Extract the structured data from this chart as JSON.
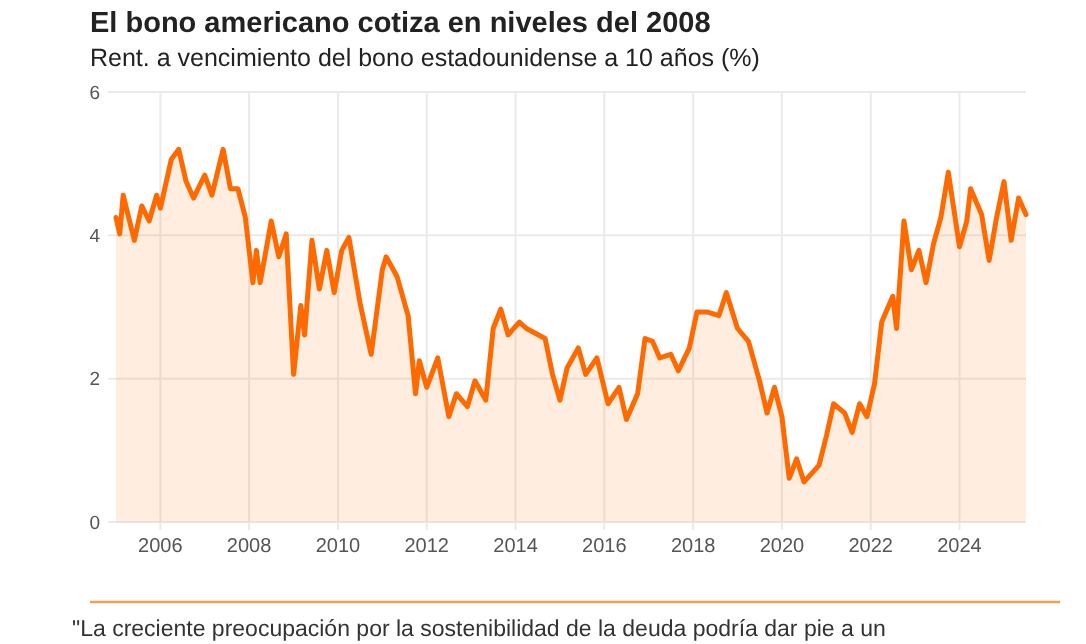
{
  "chart_data": {
    "type": "area",
    "title": "El bono americano cotiza en niveles del 2008",
    "subtitle": "Rent. a vencimiento del bono estadounidense a 10 años (%)",
    "series": [
      {
        "color": "#ff6a00",
        "x": [
          "2005-01",
          "2005-02",
          "2005-03",
          "2005-06",
          "2005-08",
          "2005-10",
          "2005-12",
          "2006-01",
          "2006-04",
          "2006-06",
          "2006-08",
          "2006-10",
          "2007-01",
          "2007-03",
          "2007-06",
          "2007-08",
          "2007-10",
          "2007-12",
          "2008-02",
          "2008-03",
          "2008-04",
          "2008-07",
          "2008-09",
          "2008-11",
          "2009-01",
          "2009-03",
          "2009-04",
          "2009-06",
          "2009-08",
          "2009-10",
          "2009-12",
          "2010-02",
          "2010-04",
          "2010-07",
          "2010-10",
          "2011-01",
          "2011-02",
          "2011-05",
          "2011-08",
          "2011-10",
          "2011-11",
          "2012-01",
          "2012-04",
          "2012-07",
          "2012-09",
          "2012-12",
          "2013-02",
          "2013-05",
          "2013-07",
          "2013-09",
          "2013-11",
          "2014-02",
          "2014-04",
          "2014-09",
          "2014-11",
          "2015-01",
          "2015-03",
          "2015-06",
          "2015-08",
          "2015-11",
          "2016-02",
          "2016-05",
          "2016-07",
          "2016-10",
          "2016-12",
          "2017-02",
          "2017-04",
          "2017-07",
          "2017-09",
          "2017-12",
          "2018-02",
          "2018-05",
          "2018-08",
          "2018-10",
          "2019-01",
          "2019-04",
          "2019-07",
          "2019-09",
          "2019-11",
          "2020-01",
          "2020-03",
          "2020-05",
          "2020-07",
          "2020-11",
          "2021-01",
          "2021-03",
          "2021-06",
          "2021-08",
          "2021-10",
          "2021-12",
          "2022-02",
          "2022-04",
          "2022-07",
          "2022-08",
          "2022-10",
          "2022-12",
          "2023-02",
          "2023-04",
          "2023-06",
          "2023-08",
          "2023-10",
          "2024-01",
          "2024-03",
          "2024-04",
          "2024-07",
          "2024-09",
          "2024-11",
          "2025-01",
          "2025-03",
          "2025-05",
          "2025-07"
        ],
        "values": [
          4.25,
          4.02,
          4.56,
          3.93,
          4.41,
          4.2,
          4.56,
          4.38,
          5.06,
          5.2,
          4.75,
          4.52,
          4.84,
          4.56,
          5.2,
          4.65,
          4.65,
          4.25,
          3.34,
          3.79,
          3.34,
          4.2,
          3.7,
          4.02,
          2.06,
          3.02,
          2.61,
          3.93,
          3.25,
          3.79,
          3.2,
          3.79,
          3.97,
          3.06,
          2.34,
          3.52,
          3.7,
          3.43,
          2.88,
          1.79,
          2.25,
          1.88,
          2.29,
          1.47,
          1.79,
          1.61,
          1.97,
          1.7,
          2.7,
          2.97,
          2.61,
          2.79,
          2.7,
          2.56,
          2.06,
          1.7,
          2.15,
          2.43,
          2.06,
          2.29,
          1.65,
          1.88,
          1.43,
          1.79,
          2.56,
          2.52,
          2.29,
          2.34,
          2.11,
          2.43,
          2.93,
          2.93,
          2.88,
          3.2,
          2.7,
          2.52,
          1.97,
          1.52,
          1.88,
          1.47,
          0.61,
          0.88,
          0.56,
          0.79,
          1.2,
          1.65,
          1.52,
          1.25,
          1.65,
          1.47,
          1.93,
          2.79,
          3.15,
          2.7,
          4.2,
          3.52,
          3.79,
          3.34,
          3.88,
          4.25,
          4.88,
          3.84,
          4.2,
          4.65,
          4.29,
          3.65,
          4.25,
          4.75,
          3.93,
          4.52,
          4.29
        ]
      }
    ],
    "xlim": [
      "2005-01",
      "2025-07"
    ],
    "xticks": [
      "2006",
      "2008",
      "2010",
      "2012",
      "2014",
      "2016",
      "2018",
      "2020",
      "2022",
      "2024"
    ],
    "ylim": [
      0,
      6
    ],
    "yticks": [
      0,
      2,
      4,
      6
    ],
    "grid": true,
    "annotations": [
      "\"La creciente preocupación por la sostenibilidad de la deuda podría dar pie a un"
    ]
  }
}
